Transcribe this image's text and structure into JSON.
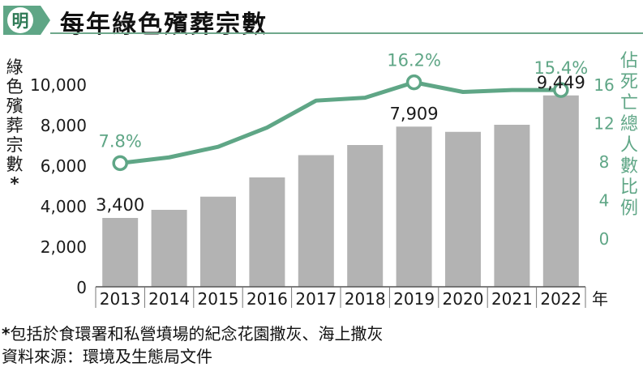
{
  "title": "每年綠色殯葬宗數",
  "logo_text": "明",
  "colors": {
    "bar": "#b3b3b3",
    "line": "#5fa686",
    "accent": "#5fa686",
    "text": "#1a1a1a"
  },
  "chart_data": {
    "type": "bar+line",
    "categories": [
      "2013",
      "2014",
      "2015",
      "2016",
      "2017",
      "2018",
      "2019",
      "2020",
      "2021",
      "2022"
    ],
    "x_unit": "年",
    "series": [
      {
        "name": "綠色殯葬宗數*",
        "type": "bar",
        "axis": "left",
        "values": [
          3400,
          3800,
          4450,
          5400,
          6500,
          7000,
          7909,
          7650,
          8000,
          9449
        ]
      },
      {
        "name": "佔死亡總人數比例",
        "type": "line",
        "axis": "right",
        "values": [
          7.8,
          8.4,
          9.5,
          11.5,
          14.3,
          14.6,
          16.2,
          15.2,
          15.4,
          15.4
        ]
      }
    ],
    "ylabel_left": "綠色殯葬宗數*",
    "ylabel_right": "佔死亡總人數比例",
    "ylim_left": [
      0,
      10000
    ],
    "yticks_left": [
      "0",
      "2,000",
      "4,000",
      "6,000",
      "8,000",
      "10,000"
    ],
    "ylim_right": [
      0,
      16
    ],
    "yticks_right": [
      "0",
      "4",
      "8",
      "12",
      "16"
    ],
    "bar_labels": [
      {
        "index": 0,
        "text": "3,400"
      },
      {
        "index": 6,
        "text": "7,909"
      },
      {
        "index": 9,
        "text": "9,449"
      }
    ],
    "line_labels": [
      {
        "index": 0,
        "text": "7.8%"
      },
      {
        "index": 6,
        "text": "16.2%"
      },
      {
        "index": 9,
        "text": "15.4%"
      }
    ],
    "grid": false,
    "legend": "none"
  },
  "footnote": {
    "star": "*",
    "text": "包括於食環署和私營墳場的紀念花園撒灰、海上撒灰"
  },
  "source": "資料來源：環境及生態局文件"
}
